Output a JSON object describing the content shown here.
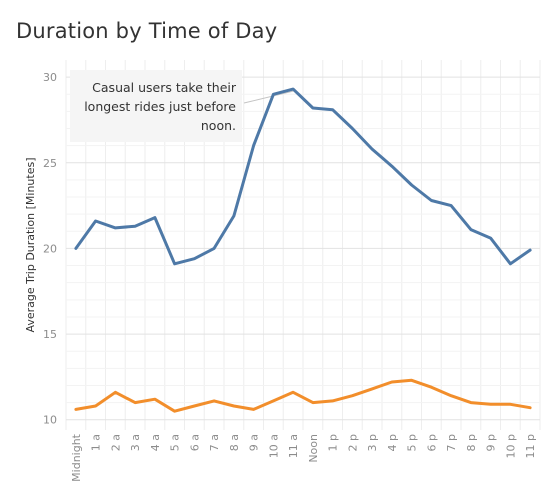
{
  "title": "Duration by Time of Day",
  "chart_data": {
    "type": "line",
    "title": "Duration by Time of Day",
    "xlabel": "",
    "ylabel": "Average Trip Duration [Minutes]",
    "categories": [
      "Midnight",
      "1 a",
      "2 a",
      "3 a",
      "4 a",
      "5 a",
      "6 a",
      "7 a",
      "8 a",
      "9 a",
      "10 a",
      "11 a",
      "Noon",
      "1 p",
      "2 p",
      "3 p",
      "4 p",
      "5 p",
      "6 p",
      "7 p",
      "8 p",
      "9 p",
      "10 p",
      "11 p"
    ],
    "y_ticks": [
      10,
      15,
      20,
      25,
      30
    ],
    "ylim": [
      10,
      30
    ],
    "grid": true,
    "series": [
      {
        "values": [
          20.0,
          21.6,
          21.2,
          21.3,
          21.8,
          19.1,
          19.4,
          20.0,
          21.9,
          26.0,
          29.0,
          29.3,
          28.2,
          28.1,
          27.0,
          25.8,
          24.8,
          23.7,
          22.8,
          22.5,
          21.1,
          20.6,
          19.1,
          19.9
        ]
      },
      {
        "values": [
          10.6,
          10.8,
          11.6,
          11.0,
          11.2,
          10.5,
          10.8,
          11.1,
          10.8,
          10.6,
          11.1,
          11.6,
          11.0,
          11.1,
          11.4,
          11.8,
          12.2,
          12.3,
          11.9,
          11.4,
          11.0,
          10.9,
          10.9,
          10.7
        ]
      }
    ],
    "colors": [
      "#4e79a7",
      "#f28e2b"
    ],
    "annotation": {
      "lines": [
        "Casual users take their",
        "longest rides just before",
        "noon."
      ],
      "target_category": "11 a",
      "target_series": 0
    }
  }
}
